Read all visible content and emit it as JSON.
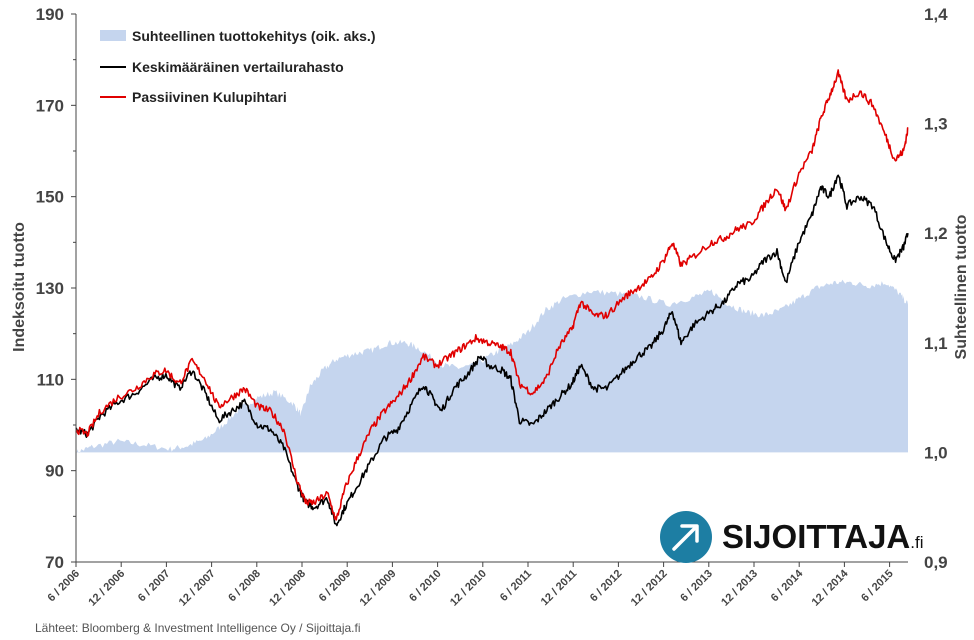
{
  "chart_data": {
    "type": "line",
    "left_axis": {
      "title": "Indeksoitu tuotto",
      "range": [
        70,
        190
      ],
      "ticks": [
        "70",
        "90",
        "110",
        "130",
        "150",
        "170",
        "190"
      ]
    },
    "right_axis": {
      "title": "Suhteellinen tuotto",
      "range": [
        0.9,
        1.4
      ],
      "ticks": [
        "0,9",
        "1,0",
        "1,1",
        "1,2",
        "1,3",
        "1,4"
      ]
    },
    "x_ticks": [
      "6 / 2006",
      "12 / 2006",
      "6 / 2007",
      "12 / 2007",
      "6 / 2008",
      "12 / 2008",
      "6 / 2009",
      "12 / 2009",
      "6 / 2010",
      "12 / 2010",
      "6 / 2011",
      "12 / 2011",
      "6 / 2012",
      "12 / 2012",
      "6 / 2013",
      "12 / 2013",
      "6 / 2014",
      "12 / 2014",
      "6 / 2015"
    ],
    "x_range": [
      2006.42,
      2015.95
    ],
    "series": [
      {
        "name": "Suhteellinen tuottokehitys (oik. aks.)",
        "axis": "right",
        "style": "area",
        "color": "#c5d5ee",
        "points": [
          [
            2006.42,
            1.0
          ],
          [
            2006.6,
            1.005
          ],
          [
            2006.9,
            1.01
          ],
          [
            2007.2,
            1.007
          ],
          [
            2007.5,
            1.003
          ],
          [
            2007.7,
            1.006
          ],
          [
            2007.9,
            1.012
          ],
          [
            2008.1,
            1.025
          ],
          [
            2008.3,
            1.04
          ],
          [
            2008.5,
            1.05
          ],
          [
            2008.7,
            1.055
          ],
          [
            2008.9,
            1.045
          ],
          [
            2009.0,
            1.035
          ],
          [
            2009.1,
            1.06
          ],
          [
            2009.25,
            1.075
          ],
          [
            2009.4,
            1.085
          ],
          [
            2009.6,
            1.09
          ],
          [
            2009.8,
            1.093
          ],
          [
            2010.0,
            1.1
          ],
          [
            2010.2,
            1.1
          ],
          [
            2010.35,
            1.095
          ],
          [
            2010.6,
            1.08
          ],
          [
            2010.8,
            1.077
          ],
          [
            2011.0,
            1.08
          ],
          [
            2011.2,
            1.09
          ],
          [
            2011.4,
            1.098
          ],
          [
            2011.6,
            1.11
          ],
          [
            2011.8,
            1.13
          ],
          [
            2012.0,
            1.14
          ],
          [
            2012.3,
            1.147
          ],
          [
            2012.6,
            1.145
          ],
          [
            2012.9,
            1.142
          ],
          [
            2013.2,
            1.135
          ],
          [
            2013.5,
            1.142
          ],
          [
            2013.7,
            1.147
          ],
          [
            2013.9,
            1.135
          ],
          [
            2014.1,
            1.128
          ],
          [
            2014.3,
            1.125
          ],
          [
            2014.5,
            1.13
          ],
          [
            2014.7,
            1.14
          ],
          [
            2014.9,
            1.15
          ],
          [
            2015.1,
            1.155
          ],
          [
            2015.3,
            1.155
          ],
          [
            2015.5,
            1.152
          ],
          [
            2015.7,
            1.155
          ],
          [
            2015.85,
            1.145
          ],
          [
            2015.95,
            1.135
          ]
        ]
      },
      {
        "name": "Keskimääräinen vertailurahasto",
        "axis": "left",
        "style": "line",
        "color": "#000000",
        "points": [
          [
            2006.42,
            99
          ],
          [
            2006.55,
            98
          ],
          [
            2006.7,
            102
          ],
          [
            2006.9,
            105
          ],
          [
            2007.1,
            107
          ],
          [
            2007.3,
            110
          ],
          [
            2007.45,
            111
          ],
          [
            2007.6,
            108
          ],
          [
            2007.75,
            112
          ],
          [
            2007.9,
            107
          ],
          [
            2008.05,
            101
          ],
          [
            2008.2,
            103
          ],
          [
            2008.35,
            105
          ],
          [
            2008.5,
            100
          ],
          [
            2008.65,
            99
          ],
          [
            2008.8,
            95
          ],
          [
            2008.95,
            87
          ],
          [
            2009.05,
            83
          ],
          [
            2009.15,
            82
          ],
          [
            2009.3,
            84
          ],
          [
            2009.4,
            78
          ],
          [
            2009.5,
            82
          ],
          [
            2009.65,
            87
          ],
          [
            2009.8,
            92
          ],
          [
            2009.95,
            97
          ],
          [
            2010.1,
            99
          ],
          [
            2010.25,
            104
          ],
          [
            2010.4,
            109
          ],
          [
            2010.5,
            106
          ],
          [
            2010.6,
            103
          ],
          [
            2010.75,
            108
          ],
          [
            2010.9,
            111
          ],
          [
            2011.05,
            115
          ],
          [
            2011.15,
            113
          ],
          [
            2011.3,
            112
          ],
          [
            2011.4,
            110
          ],
          [
            2011.5,
            101
          ],
          [
            2011.65,
            100
          ],
          [
            2011.8,
            103
          ],
          [
            2011.95,
            106
          ],
          [
            2012.1,
            109
          ],
          [
            2012.2,
            113
          ],
          [
            2012.35,
            108
          ],
          [
            2012.5,
            108
          ],
          [
            2012.7,
            112
          ],
          [
            2012.85,
            115
          ],
          [
            2013.0,
            117
          ],
          [
            2013.15,
            121
          ],
          [
            2013.25,
            125
          ],
          [
            2013.35,
            118
          ],
          [
            2013.5,
            122
          ],
          [
            2013.7,
            125
          ],
          [
            2013.85,
            127
          ],
          [
            2014.0,
            131
          ],
          [
            2014.15,
            132
          ],
          [
            2014.3,
            136
          ],
          [
            2014.45,
            138
          ],
          [
            2014.55,
            131
          ],
          [
            2014.7,
            140
          ],
          [
            2014.85,
            146
          ],
          [
            2014.95,
            152
          ],
          [
            2015.05,
            150
          ],
          [
            2015.15,
            155
          ],
          [
            2015.25,
            148
          ],
          [
            2015.4,
            150
          ],
          [
            2015.55,
            148
          ],
          [
            2015.7,
            140
          ],
          [
            2015.8,
            136
          ],
          [
            2015.9,
            139
          ],
          [
            2015.95,
            142
          ]
        ]
      },
      {
        "name": "Passiivinen Kulupihtari",
        "axis": "left",
        "style": "line",
        "color": "#e00000",
        "points": [
          [
            2006.42,
            99
          ],
          [
            2006.55,
            98
          ],
          [
            2006.7,
            103
          ],
          [
            2006.9,
            106
          ],
          [
            2007.1,
            108
          ],
          [
            2007.3,
            111
          ],
          [
            2007.45,
            112
          ],
          [
            2007.6,
            109
          ],
          [
            2007.75,
            114
          ],
          [
            2007.9,
            110
          ],
          [
            2008.05,
            104
          ],
          [
            2008.2,
            106
          ],
          [
            2008.35,
            108
          ],
          [
            2008.5,
            104
          ],
          [
            2008.65,
            103
          ],
          [
            2008.8,
            99
          ],
          [
            2008.95,
            88
          ],
          [
            2009.05,
            83
          ],
          [
            2009.15,
            83
          ],
          [
            2009.3,
            85
          ],
          [
            2009.4,
            79
          ],
          [
            2009.5,
            86
          ],
          [
            2009.65,
            93
          ],
          [
            2009.8,
            99
          ],
          [
            2009.95,
            103
          ],
          [
            2010.1,
            106
          ],
          [
            2010.25,
            110
          ],
          [
            2010.4,
            115
          ],
          [
            2010.55,
            113
          ],
          [
            2010.7,
            115
          ],
          [
            2010.85,
            117
          ],
          [
            2011.0,
            119
          ],
          [
            2011.15,
            118
          ],
          [
            2011.3,
            117
          ],
          [
            2011.4,
            116
          ],
          [
            2011.5,
            109
          ],
          [
            2011.65,
            107
          ],
          [
            2011.8,
            110
          ],
          [
            2011.95,
            117
          ],
          [
            2012.1,
            121
          ],
          [
            2012.2,
            127
          ],
          [
            2012.35,
            124
          ],
          [
            2012.5,
            124
          ],
          [
            2012.7,
            128
          ],
          [
            2012.85,
            130
          ],
          [
            2013.0,
            132
          ],
          [
            2013.15,
            136
          ],
          [
            2013.25,
            140
          ],
          [
            2013.35,
            135
          ],
          [
            2013.5,
            137
          ],
          [
            2013.7,
            140
          ],
          [
            2013.85,
            141
          ],
          [
            2014.0,
            143
          ],
          [
            2014.15,
            144
          ],
          [
            2014.3,
            148
          ],
          [
            2014.45,
            152
          ],
          [
            2014.55,
            147
          ],
          [
            2014.7,
            155
          ],
          [
            2014.85,
            160
          ],
          [
            2014.95,
            167
          ],
          [
            2015.05,
            172
          ],
          [
            2015.15,
            177
          ],
          [
            2015.25,
            171
          ],
          [
            2015.4,
            173
          ],
          [
            2015.55,
            170
          ],
          [
            2015.7,
            163
          ],
          [
            2015.8,
            158
          ],
          [
            2015.9,
            160
          ],
          [
            2015.95,
            165
          ]
        ]
      }
    ]
  },
  "legend": [
    {
      "label": "Suhteellinen tuottokehitys (oik. aks.)",
      "swatch": "area",
      "color": "#c5d5ee"
    },
    {
      "label": "Keskimääräinen vertailurahasto",
      "swatch": "line",
      "color": "#000000"
    },
    {
      "label": "Passiivinen Kulupihtari",
      "swatch": "line",
      "color": "#e00000"
    }
  ],
  "source_note": "Lähteet: Bloomberg & Investment Intelligence Oy / Sijoittaja.fi",
  "logo": {
    "name": "SIJOITTAJA",
    "suffix": ".fi"
  }
}
